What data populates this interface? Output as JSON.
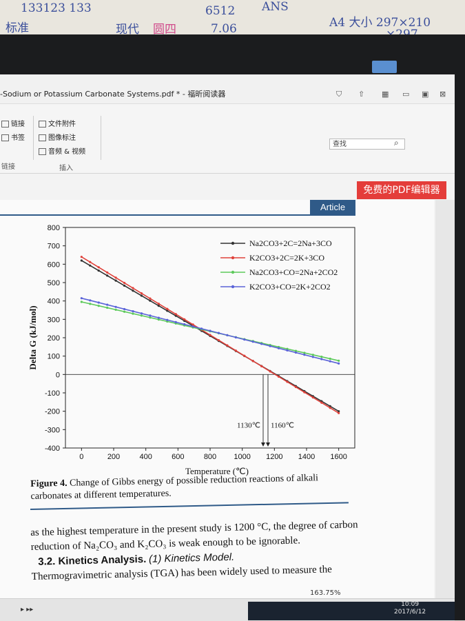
{
  "notes": {
    "line1": "133123 133",
    "line2": "标准",
    "line3": "现代",
    "line4": "圆四",
    "line5": "6512",
    "line6": "ANS",
    "line7": "7.06",
    "line8": "A4 大小 297×210",
    "line9": "×297"
  },
  "window": {
    "title": "-Sodium or Potassium Carbonate Systems.pdf * - 福昕阅读器"
  },
  "ribbon": {
    "link": "链接",
    "bookmark": "书签",
    "file_attach": "文件附件",
    "image_annot": "图像标注",
    "audio_video": "音频 & 视频",
    "group_link": "链接",
    "group_insert": "插入",
    "search_placeholder": "查找"
  },
  "banner": "免费的PDF编辑器",
  "article_tag": "Article",
  "chart_data": {
    "type": "line",
    "xlabel": "Temperature (℃)",
    "ylabel": "Delta G (kJ/mol)",
    "xlim": [
      -100,
      1700
    ],
    "ylim": [
      -400,
      800
    ],
    "xticks": [
      0,
      200,
      400,
      600,
      800,
      1000,
      1200,
      1400,
      1600
    ],
    "yticks": [
      800,
      700,
      600,
      500,
      400,
      300,
      200,
      100,
      0,
      -100,
      -200,
      -300,
      -400
    ],
    "series": [
      {
        "name": "Na2CO3+2C=2Na+3CO",
        "color": "#333333",
        "x": [
          0,
          1600
        ],
        "y": [
          620,
          -200
        ]
      },
      {
        "name": "K2CO3+2C=2K+3CO",
        "color": "#e0413a",
        "x": [
          0,
          1600
        ],
        "y": [
          640,
          -210
        ]
      },
      {
        "name": "Na2CO3+CO=2Na+2CO2",
        "color": "#5cc95a",
        "x": [
          0,
          1600
        ],
        "y": [
          395,
          75
        ]
      },
      {
        "name": "K2CO3+CO=2K+2CO2",
        "color": "#5a63d8",
        "x": [
          0,
          1600
        ],
        "y": [
          415,
          60
        ]
      }
    ],
    "legend_position": "top-right",
    "annotations": [
      "1130℃",
      "1160℃"
    ],
    "annotation_x": [
      1130,
      1160
    ],
    "grid": false
  },
  "caption": {
    "label": "Figure 4.",
    "text": "Change of Gibbs energy of possible reduction reactions of alkali carbonates at different temperatures."
  },
  "body": {
    "p1": "as the highest temperature in the present study is 1200 °C, the degree of carbon reduction of Na₂CO₃ and K₂CO₃ is weak enough to be ignorable.",
    "h_num": "3.2. Kinetics Analysis.",
    "h_sub": "(1) Kinetics Model.",
    "p2": "Thermogravimetric analysis (TGA) has been widely used to measure the"
  },
  "status": {
    "zoom": "163.75%",
    "time": "10:09",
    "date": "2017/6/12"
  }
}
